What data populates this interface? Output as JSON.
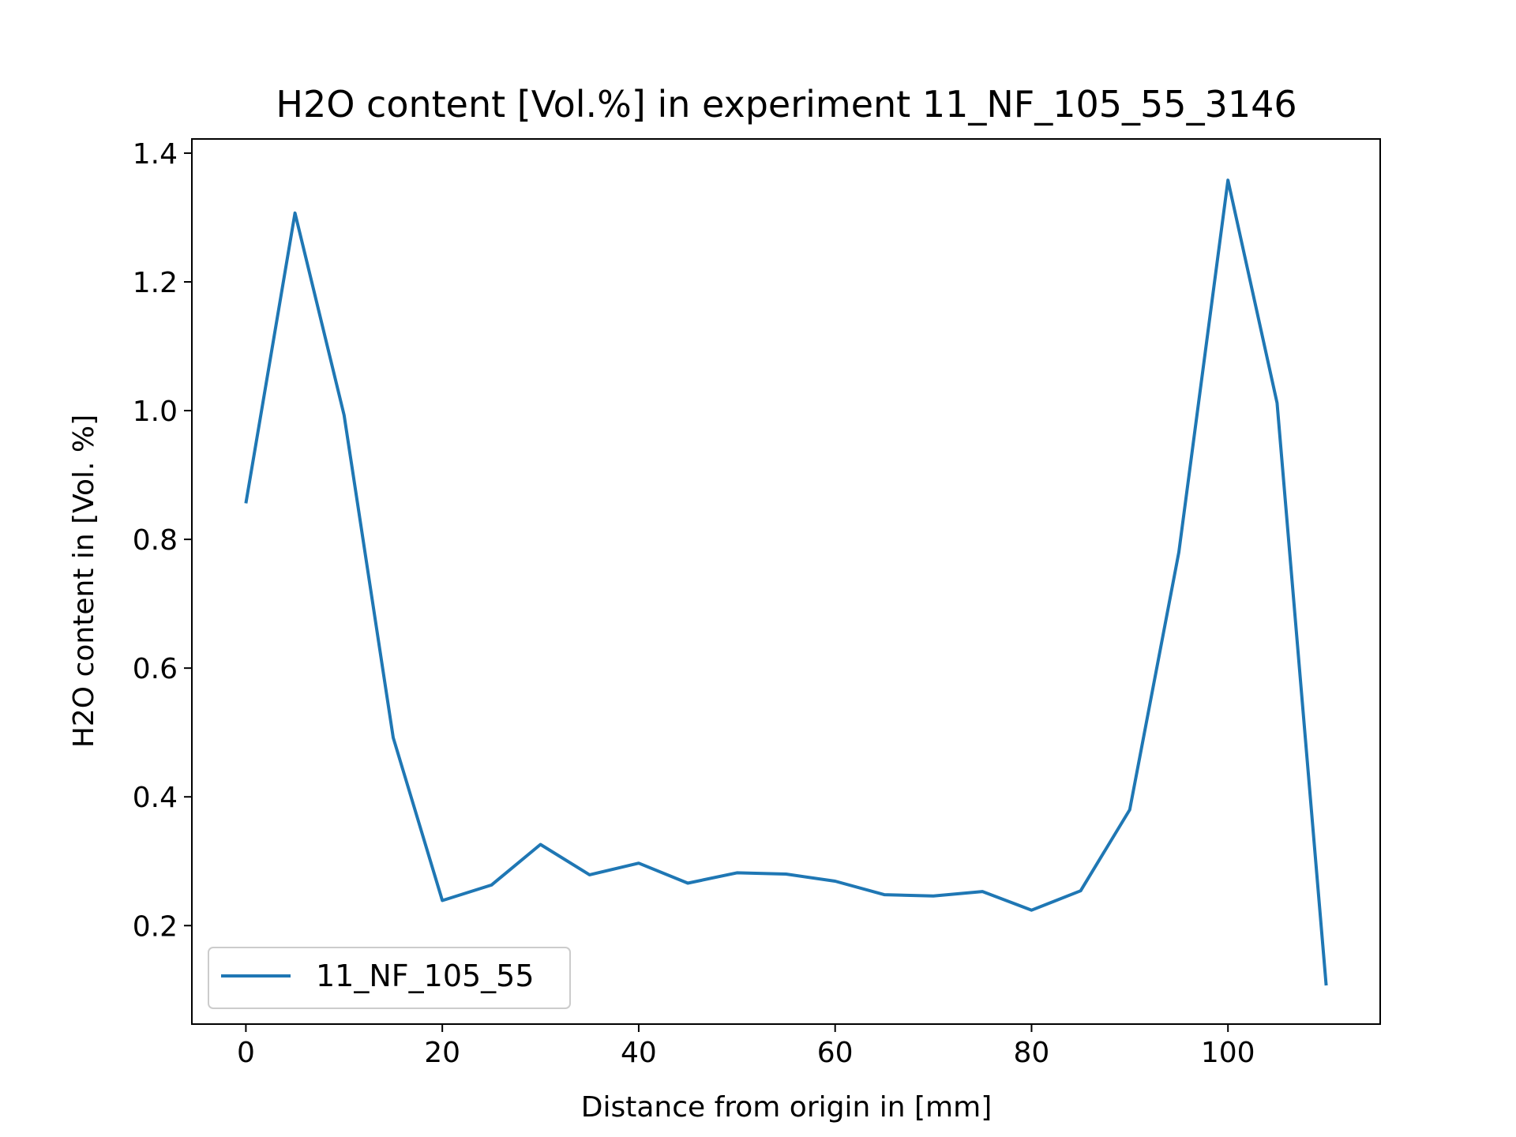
{
  "chart_data": {
    "type": "line",
    "title": "H2O content [Vol.%] in experiment 11_NF_105_55_3146",
    "xlabel": "Distance from origin in [mm]",
    "ylabel": "H2O content in [Vol. %]",
    "xlim": [
      -5.5,
      115.5
    ],
    "ylim": [
      0.047,
      1.422
    ],
    "xticks": [
      0,
      20,
      40,
      60,
      80,
      100
    ],
    "yticks": [
      0.2,
      0.4,
      0.6,
      0.8,
      1.0,
      1.2,
      1.4
    ],
    "ytick_labels": [
      "0.2",
      "0.4",
      "0.6",
      "0.8",
      "1.0",
      "1.2",
      "1.4"
    ],
    "xtick_labels": [
      "0",
      "20",
      "40",
      "60",
      "80",
      "100"
    ],
    "grid": false,
    "legend_position": "lower-left",
    "series": [
      {
        "name": "11_NF_105_55",
        "color": "#1f77b4",
        "x": [
          0,
          5,
          10,
          15,
          20,
          25,
          30,
          35,
          40,
          45,
          50,
          55,
          60,
          65,
          70,
          75,
          80,
          85,
          90,
          95,
          100,
          105,
          110
        ],
        "y": [
          0.856,
          1.307,
          0.993,
          0.492,
          0.239,
          0.263,
          0.326,
          0.279,
          0.297,
          0.266,
          0.282,
          0.28,
          0.269,
          0.248,
          0.246,
          0.253,
          0.224,
          0.254,
          0.38,
          0.78,
          1.358,
          1.012,
          0.107
        ]
      }
    ]
  }
}
